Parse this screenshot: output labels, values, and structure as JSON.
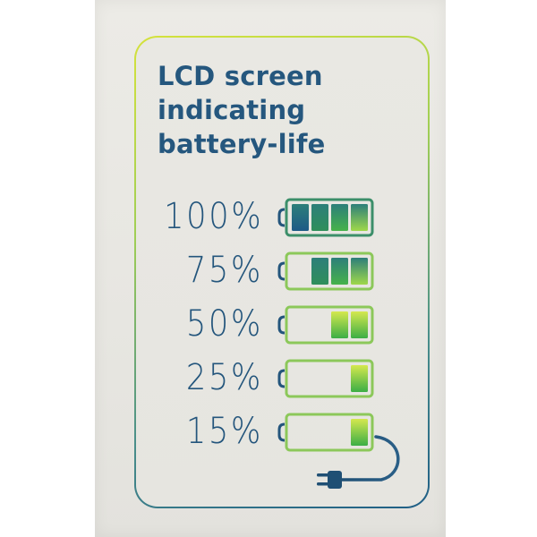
{
  "title_lines": [
    "LCD screen",
    "indicating",
    "battery-life"
  ],
  "colors": {
    "text": "#23557c",
    "title": "#25577e",
    "border_top": "#d5e23c",
    "border_bottom": "#1f5e86",
    "cell_dark": "#1d5a86",
    "cell_green": "#3cae46",
    "cell_light": "#c6e34a"
  },
  "levels": [
    {
      "label": "100%",
      "filled_cells": 4
    },
    {
      "label": "75%",
      "filled_cells": 3
    },
    {
      "label": "50%",
      "filled_cells": 2
    },
    {
      "label": "25%",
      "filled_cells": 1
    },
    {
      "label": "15%",
      "filled_cells": 1
    }
  ],
  "icons": {
    "battery": "battery-icon",
    "charger": "power-plug-icon"
  }
}
